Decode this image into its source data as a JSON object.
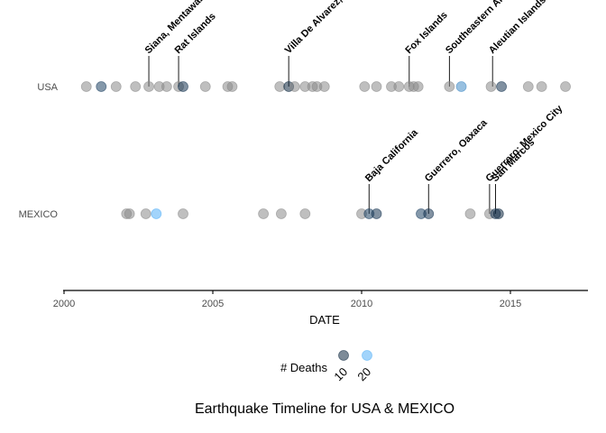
{
  "chart_data": {
    "type": "scatter",
    "title": "Earthquake Timeline for USA & MEXICO",
    "xlabel": "DATE",
    "ylabel": "",
    "xlim": [
      2000,
      2017.7
    ],
    "x_ticks": [
      "2000",
      "2005",
      "2010",
      "2015"
    ],
    "rows": [
      "USA",
      "MEXICO"
    ],
    "colors": {
      "base": "#8a8a8a",
      "low_deaths": "#132b43",
      "high_deaths": "#56b1f7",
      "axis": "#000000"
    },
    "legend": {
      "title": "# Deaths",
      "entries": [
        {
          "label": "10",
          "deaths": 10
        },
        {
          "label": "20",
          "deaths": 20
        }
      ],
      "placement": "bottom"
    },
    "series": [
      {
        "row": "USA",
        "quakes": [
          {
            "year": 2000.75,
            "deaths": null
          },
          {
            "year": 2001.25,
            "deaths": 12
          },
          {
            "year": 2001.75,
            "deaths": null
          },
          {
            "year": 2002.4,
            "deaths": null
          },
          {
            "year": 2002.85,
            "deaths": null
          },
          {
            "year": 2003.2,
            "deaths": null
          },
          {
            "year": 2003.45,
            "deaths": null
          },
          {
            "year": 2003.85,
            "deaths": null
          },
          {
            "year": 2004.0,
            "deaths": 11
          },
          {
            "year": 2004.75,
            "deaths": null
          },
          {
            "year": 2005.5,
            "deaths": null
          },
          {
            "year": 2005.65,
            "deaths": null
          },
          {
            "year": 2007.25,
            "deaths": null
          },
          {
            "year": 2007.55,
            "deaths": 10
          },
          {
            "year": 2007.75,
            "deaths": null
          },
          {
            "year": 2008.1,
            "deaths": null
          },
          {
            "year": 2008.35,
            "deaths": null
          },
          {
            "year": 2008.5,
            "deaths": null
          },
          {
            "year": 2008.75,
            "deaths": null
          },
          {
            "year": 2010.1,
            "deaths": null
          },
          {
            "year": 2010.5,
            "deaths": null
          },
          {
            "year": 2011.0,
            "deaths": null
          },
          {
            "year": 2011.25,
            "deaths": null
          },
          {
            "year": 2011.6,
            "deaths": null
          },
          {
            "year": 2011.75,
            "deaths": null
          },
          {
            "year": 2011.9,
            "deaths": null
          },
          {
            "year": 2012.95,
            "deaths": null
          },
          {
            "year": 2013.35,
            "deaths": 18
          },
          {
            "year": 2014.35,
            "deaths": null
          },
          {
            "year": 2014.7,
            "deaths": 11
          },
          {
            "year": 2015.6,
            "deaths": null
          },
          {
            "year": 2016.05,
            "deaths": null
          },
          {
            "year": 2016.85,
            "deaths": null
          }
        ],
        "labels": [
          {
            "year": 2002.85,
            "text": "Siana, Mentawai"
          },
          {
            "year": 2003.85,
            "text": "Rat Islands"
          },
          {
            "year": 2007.55,
            "text": "Villa De Alvarez, Colima, Tecoman, Jalisco"
          },
          {
            "year": 2011.6,
            "text": "Fox Islands"
          },
          {
            "year": 2012.95,
            "text": "Southeastern Alaska"
          },
          {
            "year": 2014.4,
            "text": "Aleutian Islands"
          }
        ]
      },
      {
        "row": "MEXICO",
        "quakes": [
          {
            "year": 2002.1,
            "deaths": null
          },
          {
            "year": 2002.2,
            "deaths": null
          },
          {
            "year": 2002.75,
            "deaths": null
          },
          {
            "year": 2003.1,
            "deaths": 21
          },
          {
            "year": 2004.0,
            "deaths": null
          },
          {
            "year": 2006.7,
            "deaths": null
          },
          {
            "year": 2007.3,
            "deaths": null
          },
          {
            "year": 2008.1,
            "deaths": null
          },
          {
            "year": 2010.0,
            "deaths": null
          },
          {
            "year": 2010.25,
            "deaths": 12
          },
          {
            "year": 2010.5,
            "deaths": 11
          },
          {
            "year": 2012.0,
            "deaths": 12
          },
          {
            "year": 2012.25,
            "deaths": 11
          },
          {
            "year": 2013.65,
            "deaths": null
          },
          {
            "year": 2014.3,
            "deaths": null
          },
          {
            "year": 2014.5,
            "deaths": 11
          },
          {
            "year": 2014.6,
            "deaths": 10
          }
        ],
        "labels": [
          {
            "year": 2010.25,
            "text": "Baja California"
          },
          {
            "year": 2012.25,
            "text": "Guerrero, Oaxaca"
          },
          {
            "year": 2014.3,
            "text": "Guerrero; Mexico City"
          },
          {
            "year": 2014.5,
            "text": "San Marcos"
          }
        ]
      }
    ]
  }
}
